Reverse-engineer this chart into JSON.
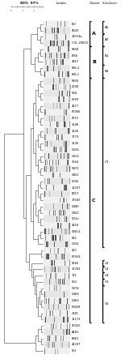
{
  "isolates": [
    "f32",
    "B020",
    "12014a",
    "COL 20820",
    "F868",
    "f366",
    "4267",
    "F86-2",
    "F86-1",
    "F806",
    "2008",
    "548",
    "F699",
    "4677",
    "P1985",
    "P872",
    "1508",
    "1626",
    "1779",
    "3136",
    "D596",
    "G214",
    "3564",
    "D672",
    "D601",
    "5206",
    "12207",
    "B017",
    "17560",
    "D480",
    "D061",
    "5D1e",
    "4250",
    "5B011",
    "882",
    "C316",
    "407",
    "P1959",
    "5566",
    "17760",
    "172",
    "F60",
    "D076",
    "D469",
    "D460",
    "F1849",
    "2881",
    "11173",
    "FD347",
    "A181",
    "B961",
    "42207",
    "F61"
  ],
  "header_text": "80%  97%",
  "cluster_brackets": [
    {
      "label": "A",
      "start": 0,
      "end": 3
    },
    {
      "label": "B",
      "start": 4,
      "end": 8
    },
    {
      "label": "C",
      "start": 9,
      "end": 47
    }
  ],
  "subcluster_brackets": [
    {
      "label": "A1",
      "start": 0,
      "end": 1
    },
    {
      "label": "A2",
      "start": 2,
      "end": 3
    },
    {
      "label": "B1",
      "start": 4,
      "end": 6
    },
    {
      "label": "B2",
      "start": 7,
      "end": 8
    },
    {
      "label": "C1",
      "start": 9,
      "end": 35
    },
    {
      "label": "C2",
      "start": 38,
      "end": 38
    },
    {
      "label": "C3",
      "start": 39,
      "end": 39
    },
    {
      "label": "C4",
      "start": 40,
      "end": 40
    },
    {
      "label": "C5",
      "start": 41,
      "end": 41
    },
    {
      "label": "C6",
      "start": 42,
      "end": 47
    }
  ],
  "fig_w": 1.5,
  "fig_h": 4.43,
  "dpi": 100
}
